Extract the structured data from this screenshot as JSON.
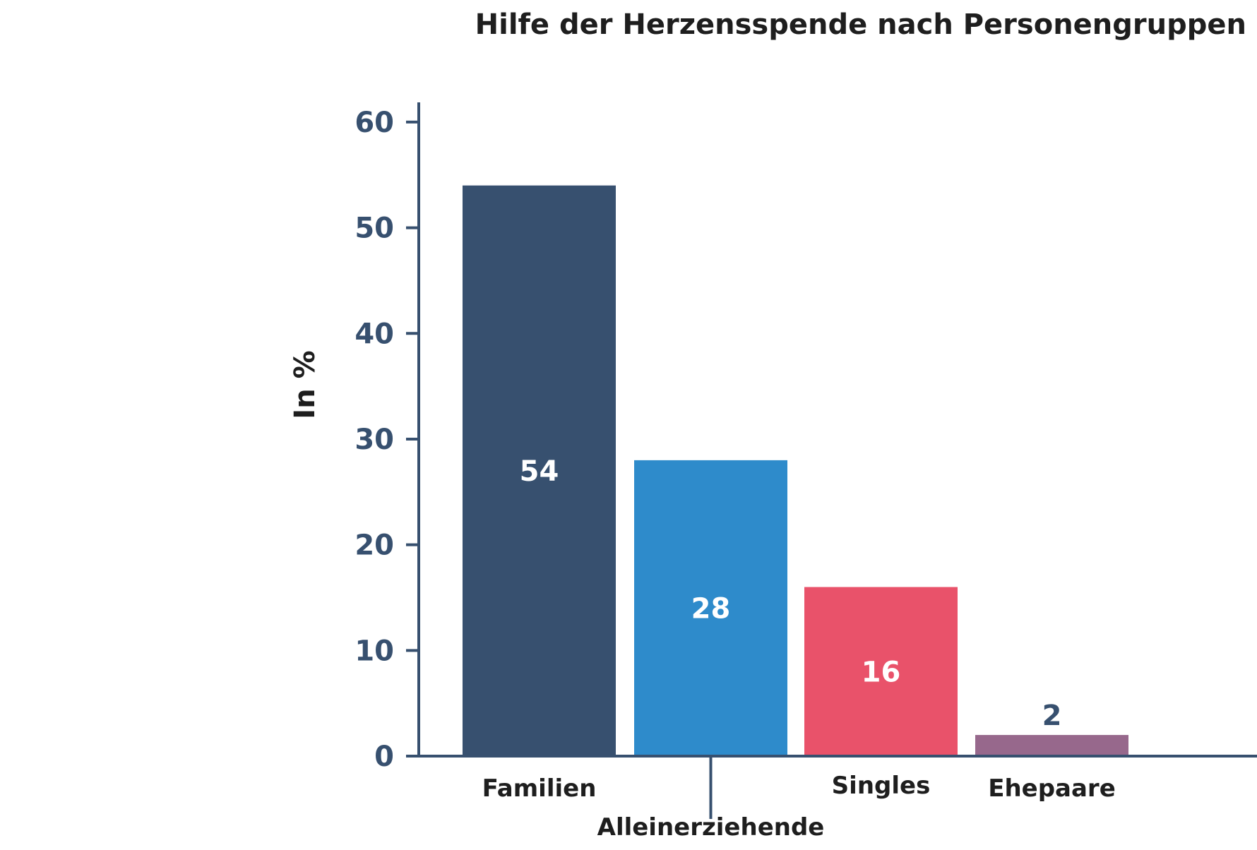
{
  "chart_data": {
    "type": "bar",
    "title": "Hilfe der Herzensspende nach Personengruppen",
    "ylabel": "In %",
    "xlabel": "",
    "categories": [
      "Familien",
      "Alleinerziehende",
      "Singles",
      "Ehepaare"
    ],
    "values": [
      54,
      28,
      16,
      2
    ],
    "bar_colors": [
      "#37506f",
      "#2e8bcb",
      "#e9526a",
      "#97688c"
    ],
    "label_colors": [
      "#ffffff",
      "#ffffff",
      "#ffffff",
      "#37506f"
    ],
    "ylim": [
      0,
      63
    ],
    "yticks": [
      0,
      10,
      20,
      30,
      40,
      50,
      60
    ],
    "grid": false,
    "legend": "none"
  }
}
